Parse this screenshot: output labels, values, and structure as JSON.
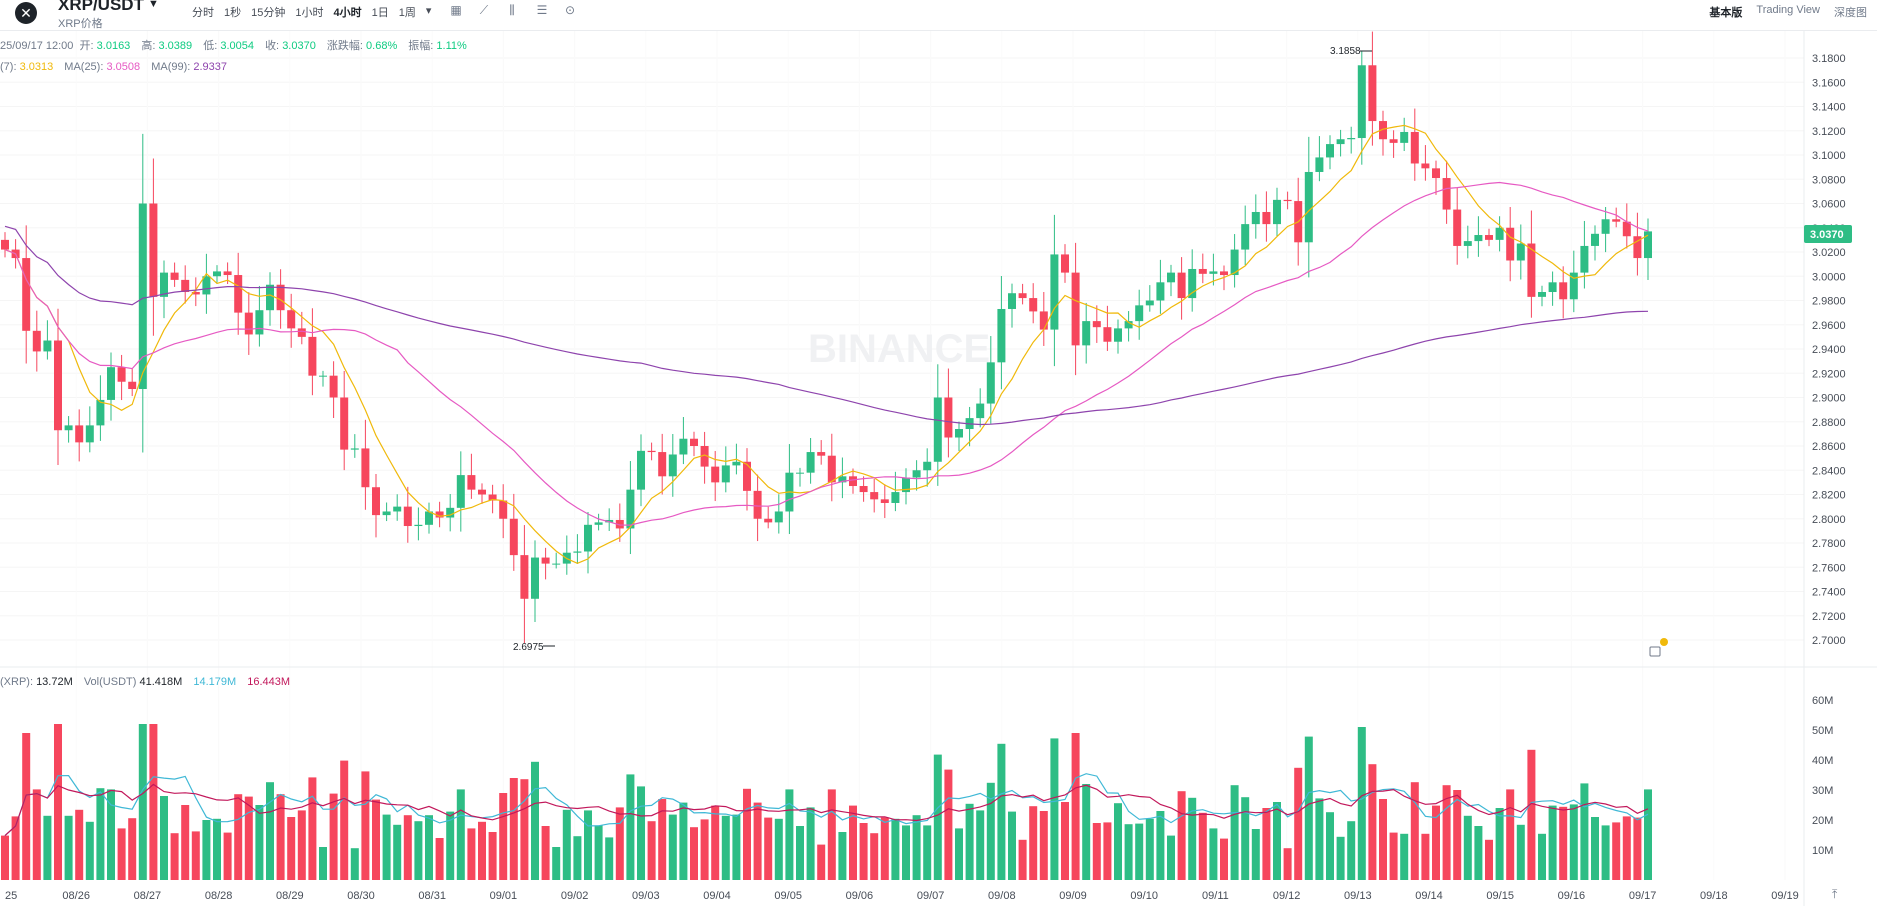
{
  "header": {
    "pair": "XRP/USDT",
    "price_label": "XRP价格",
    "intervals": [
      "分时",
      "1秒",
      "15分钟",
      "1小时",
      "4小时",
      "1日",
      "1周"
    ],
    "active_interval": "4小时",
    "views": [
      "基本版",
      "Trading View",
      "深度图"
    ],
    "active_view": "基本版"
  },
  "ohlc": {
    "date": "25/09/17 12:00",
    "open_label": "开:",
    "open": "3.0163",
    "high_label": "高:",
    "high": "3.0389",
    "low_label": "低:",
    "low": "3.0054",
    "close_label": "收:",
    "close": "3.0370",
    "change_label": "涨跌幅:",
    "change": "0.68%",
    "amplitude_label": "振幅:",
    "amplitude": "1.11%"
  },
  "ma_legend": {
    "ma7_label": "(7):",
    "ma7": "3.0313",
    "ma25_label": "MA(25):",
    "ma25": "3.0508",
    "ma99_label": "MA(99):",
    "ma99": "2.9337"
  },
  "vol_legend": {
    "vol_label": "(XRP):",
    "vol": "13.72M",
    "volusdt_label": "Vol(USDT)",
    "volusdt": "41.418M",
    "v1": "14.179M",
    "v2": "16.443M"
  },
  "watermark": "BINANCE",
  "colors": {
    "up": "#2ebd85",
    "down": "#f6465d",
    "ma7": "#f0b90b",
    "ma25": "#e65ac3",
    "ma99": "#8e44ad",
    "vol_ma1": "#3fb8d6",
    "vol_ma2": "#c2185b"
  },
  "chart_data": {
    "type": "candlestick",
    "interval": "4h",
    "x_labels": [
      "25",
      "08/26",
      "08/27",
      "08/28",
      "08/29",
      "08/30",
      "08/31",
      "09/01",
      "09/02",
      "09/03",
      "09/04",
      "09/05",
      "09/06",
      "09/07",
      "09/08",
      "09/09",
      "09/10",
      "09/11",
      "09/12",
      "09/13",
      "09/14",
      "09/15",
      "09/16",
      "09/17",
      "09/18",
      "09/19"
    ],
    "y_ticks": [
      "3.1800",
      "3.1600",
      "3.1400",
      "3.1200",
      "3.1000",
      "3.0800",
      "3.0600",
      "3.0400",
      "3.0200",
      "3.0000",
      "2.9800",
      "2.9600",
      "2.9400",
      "2.9200",
      "2.9000",
      "2.8800",
      "2.8600",
      "2.8400",
      "2.8200",
      "2.8000",
      "2.7800",
      "2.7600",
      "2.7400",
      "2.7200",
      "2.7000"
    ],
    "ylim": [
      2.686,
      3.19
    ],
    "current_price": "3.0370",
    "high_marker": "3.1858",
    "low_marker": "2.6975",
    "vol_ticks": [
      "60M",
      "50M",
      "40M",
      "30M",
      "20M",
      "10M"
    ],
    "closes": [
      3.022,
      3.015,
      2.955,
      2.938,
      2.947,
      2.873,
      2.877,
      2.863,
      2.877,
      2.898,
      2.925,
      2.913,
      2.907,
      3.06,
      2.983,
      3.003,
      2.997,
      2.987,
      2.985,
      3.0,
      3.004,
      3.001,
      2.97,
      2.952,
      2.972,
      2.993,
      2.972,
      2.957,
      2.95,
      2.918,
      2.918,
      2.9,
      2.857,
      2.858,
      2.826,
      2.803,
      2.806,
      2.81,
      2.794,
      2.795,
      2.806,
      2.801,
      2.809,
      2.836,
      2.824,
      2.82,
      2.815,
      2.8,
      2.77,
      2.734,
      2.768,
      2.763,
      2.763,
      2.772,
      2.773,
      2.795,
      2.797,
      2.799,
      2.792,
      2.824,
      2.856,
      2.855,
      2.835,
      2.853,
      2.866,
      2.86,
      2.843,
      2.83,
      2.844,
      2.847,
      2.823,
      2.8,
      2.797,
      2.806,
      2.838,
      2.838,
      2.855,
      2.852,
      2.83,
      2.835,
      2.827,
      2.822,
      2.816,
      2.813,
      2.822,
      2.834,
      2.84,
      2.847,
      2.9,
      2.867,
      2.874,
      2.883,
      2.895,
      2.929,
      2.973,
      2.986,
      2.982,
      2.971,
      2.956,
      3.018,
      3.003,
      2.943,
      2.963,
      2.958,
      2.946,
      2.957,
      2.963,
      2.976,
      2.98,
      2.995,
      3.003,
      2.982,
      3.006,
      3.002,
      3.004,
      3.001,
      3.022,
      3.043,
      3.053,
      3.043,
      3.063,
      3.062,
      3.028,
      3.086,
      3.098,
      3.109,
      3.113,
      3.114,
      3.174,
      3.128,
      3.113,
      3.11,
      3.119,
      3.093,
      3.089,
      3.081,
      3.055,
      3.025,
      3.029,
      3.034,
      3.03,
      3.04,
      3.013,
      3.027,
      2.983,
      2.987,
      2.995,
      2.981,
      3.003,
      3.025,
      3.035,
      3.047,
      3.045,
      3.033,
      3.015,
      3.037
    ]
  }
}
